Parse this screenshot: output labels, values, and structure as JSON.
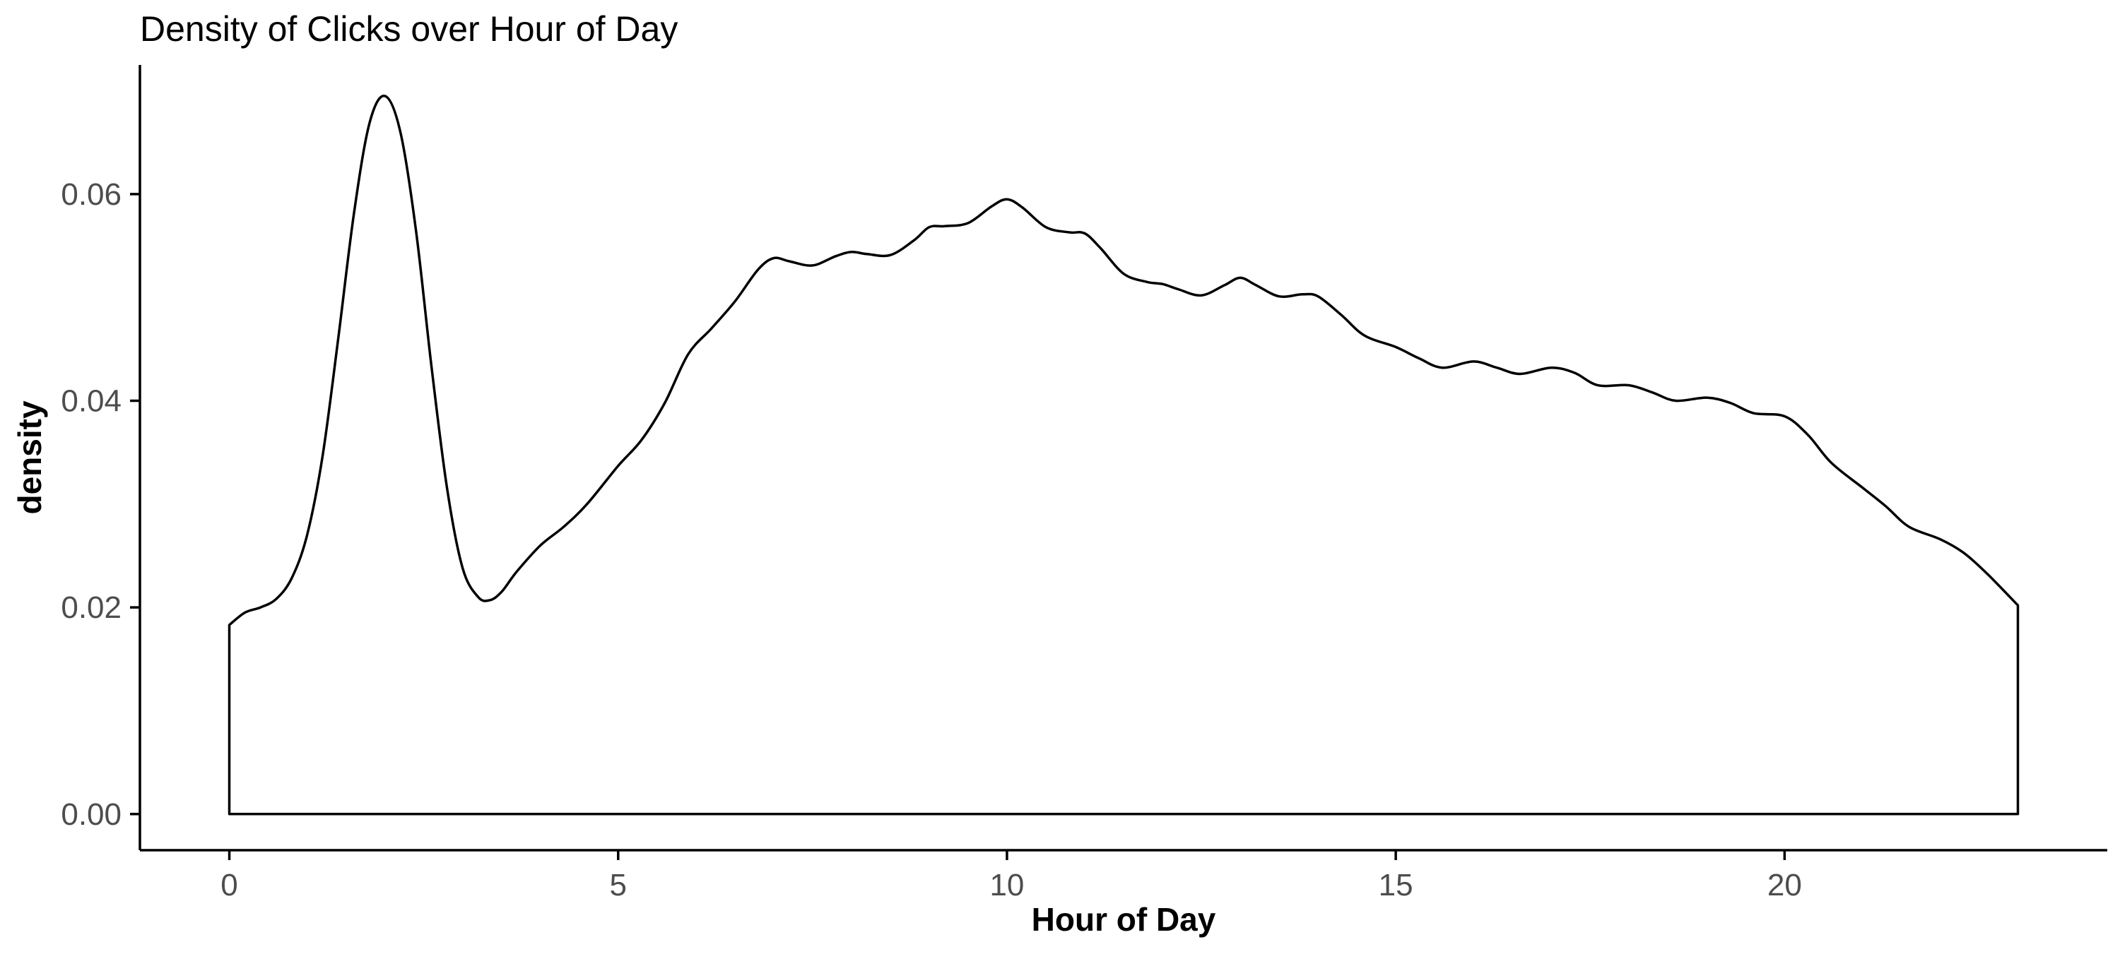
{
  "chart_data": {
    "type": "area",
    "title": "Density of Clicks over Hour of Day",
    "xlabel": "Hour of Day",
    "ylabel": "density",
    "xlim": [
      -1.15,
      24.15
    ],
    "ylim": [
      -0.0035,
      0.0725
    ],
    "x_ticks": [
      0,
      5,
      10,
      15,
      20
    ],
    "y_ticks": [
      0.0,
      0.02,
      0.04,
      0.06
    ],
    "x_tick_labels": [
      "0",
      "5",
      "10",
      "15",
      "20"
    ],
    "y_tick_labels": [
      "0.00",
      "0.02",
      "0.04",
      "0.06"
    ],
    "grid": false,
    "legend": "none",
    "fill": "none",
    "line_color": "#000000",
    "series": [
      {
        "x": [
          0,
          0.2,
          0.4,
          0.6,
          0.8,
          1.0,
          1.2,
          1.4,
          1.6,
          1.8,
          2.0,
          2.2,
          2.4,
          2.6,
          2.8,
          3.0,
          3.2,
          3.35,
          3.5,
          3.7,
          4.0,
          4.3,
          4.6,
          5.0,
          5.3,
          5.6,
          5.9,
          6.2,
          6.5,
          6.8,
          7.0,
          7.2,
          7.5,
          7.8,
          8.0,
          8.2,
          8.5,
          8.8,
          9.0,
          9.2,
          9.5,
          9.8,
          10.0,
          10.2,
          10.5,
          10.8,
          11.0,
          11.2,
          11.5,
          11.8,
          12.0,
          12.2,
          12.5,
          12.8,
          13.0,
          13.2,
          13.5,
          13.8,
          14.0,
          14.3,
          14.6,
          15.0,
          15.3,
          15.6,
          16.0,
          16.3,
          16.6,
          17.0,
          17.3,
          17.6,
          18.0,
          18.3,
          18.6,
          19.0,
          19.3,
          19.6,
          20.0,
          20.3,
          20.6,
          21.0,
          21.3,
          21.6,
          22.0,
          22.3,
          22.6,
          23.0
        ],
        "values": [
          0.0183,
          0.0195,
          0.02,
          0.0208,
          0.0228,
          0.027,
          0.0347,
          0.046,
          0.058,
          0.0668,
          0.0695,
          0.066,
          0.0565,
          0.0433,
          0.0315,
          0.0238,
          0.021,
          0.0207,
          0.0215,
          0.0235,
          0.026,
          0.0278,
          0.03,
          0.0337,
          0.0362,
          0.0398,
          0.0445,
          0.047,
          0.0496,
          0.0527,
          0.0538,
          0.0535,
          0.0531,
          0.054,
          0.0544,
          0.0542,
          0.0541,
          0.0555,
          0.0568,
          0.0569,
          0.0572,
          0.0588,
          0.0595,
          0.0587,
          0.0568,
          0.0563,
          0.0562,
          0.0548,
          0.0523,
          0.0515,
          0.0513,
          0.0508,
          0.0502,
          0.0512,
          0.0519,
          0.0512,
          0.0501,
          0.0503,
          0.0501,
          0.0483,
          0.0463,
          0.0452,
          0.0441,
          0.0432,
          0.0438,
          0.0432,
          0.0426,
          0.0432,
          0.0427,
          0.0415,
          0.0415,
          0.0408,
          0.04,
          0.0403,
          0.0398,
          0.0388,
          0.0385,
          0.0367,
          0.034,
          0.0316,
          0.0298,
          0.0278,
          0.0266,
          0.0253,
          0.0233,
          0.0202
        ]
      }
    ]
  }
}
